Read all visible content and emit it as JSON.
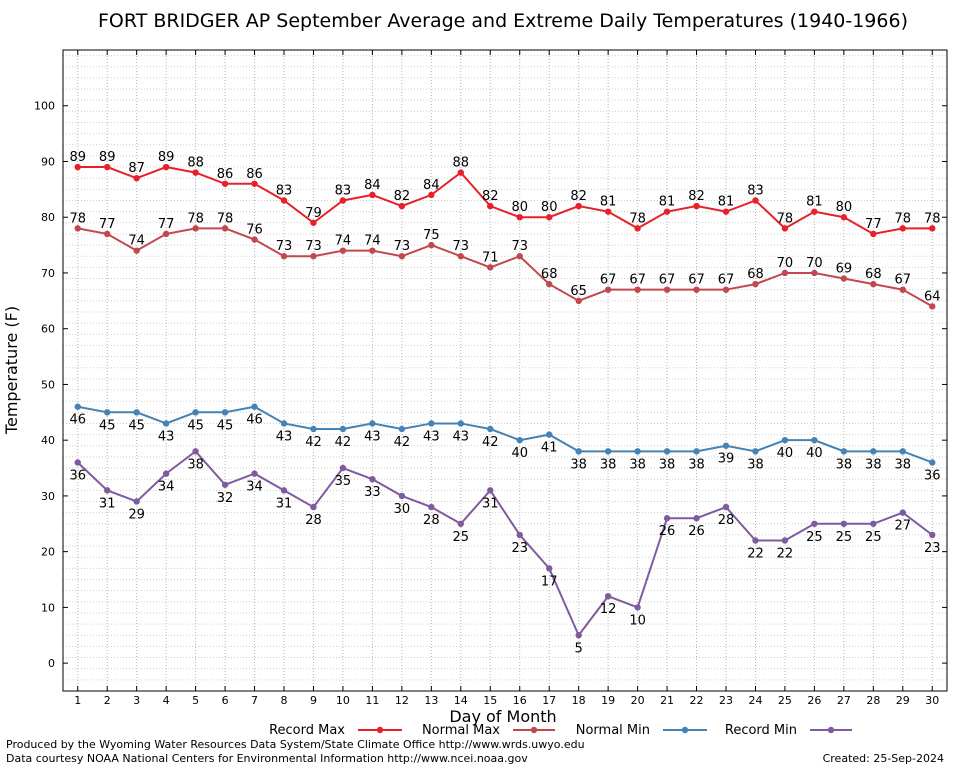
{
  "footer": {
    "left1": "Produced by the Wyoming Water Resources Data System/State Climate Office http://www.wrds.uwyo.edu",
    "left2": "Data courtesy NOAA National Centers for Environmental Information http://www.ncei.noaa.gov",
    "created": "Created:  25-Sep-2024"
  },
  "chart_data": {
    "type": "line",
    "title": "FORT BRIDGER AP September Average and Extreme Daily Temperatures (1940-1966)",
    "xlabel": "Day of Month",
    "ylabel": "Temperature (F)",
    "x": [
      1,
      2,
      3,
      4,
      5,
      6,
      7,
      8,
      9,
      10,
      11,
      12,
      13,
      14,
      15,
      16,
      17,
      18,
      19,
      20,
      21,
      22,
      23,
      24,
      25,
      26,
      27,
      28,
      29,
      30
    ],
    "xlim": [
      0.5,
      30.5
    ],
    "ylim": [
      -5,
      110
    ],
    "yticks": [
      0,
      10,
      20,
      30,
      40,
      50,
      60,
      70,
      80,
      90,
      100
    ],
    "grid": true,
    "legend_position": "bottom",
    "series": [
      {
        "name": "Record Max",
        "color": "#e8202a",
        "label_position": "above",
        "values": [
          89,
          89,
          87,
          89,
          88,
          86,
          86,
          83,
          79,
          83,
          84,
          82,
          84,
          88,
          82,
          80,
          80,
          82,
          81,
          78,
          81,
          82,
          81,
          83,
          78,
          81,
          80,
          77,
          78,
          78
        ]
      },
      {
        "name": "Normal Max",
        "color": "#c0484e",
        "label_position": "above",
        "values": [
          78,
          77,
          74,
          77,
          78,
          78,
          76,
          73,
          73,
          74,
          74,
          73,
          75,
          73,
          71,
          73,
          68,
          65,
          67,
          67,
          67,
          67,
          67,
          68,
          70,
          70,
          69,
          68,
          67,
          64
        ]
      },
      {
        "name": "Normal Min",
        "color": "#4682b4",
        "label_position": "below",
        "values": [
          46,
          45,
          45,
          43,
          45,
          45,
          46,
          43,
          42,
          42,
          43,
          42,
          43,
          43,
          42,
          40,
          41,
          38,
          38,
          38,
          38,
          38,
          39,
          38,
          40,
          40,
          38,
          38,
          38,
          36
        ]
      },
      {
        "name": "Record Min",
        "color": "#7f5a9e",
        "label_position": "below",
        "values": [
          36,
          31,
          29,
          34,
          38,
          32,
          34,
          31,
          28,
          35,
          33,
          30,
          28,
          25,
          31,
          23,
          17,
          5,
          12,
          10,
          26,
          26,
          28,
          22,
          22,
          25,
          25,
          25,
          27,
          23
        ]
      }
    ]
  }
}
